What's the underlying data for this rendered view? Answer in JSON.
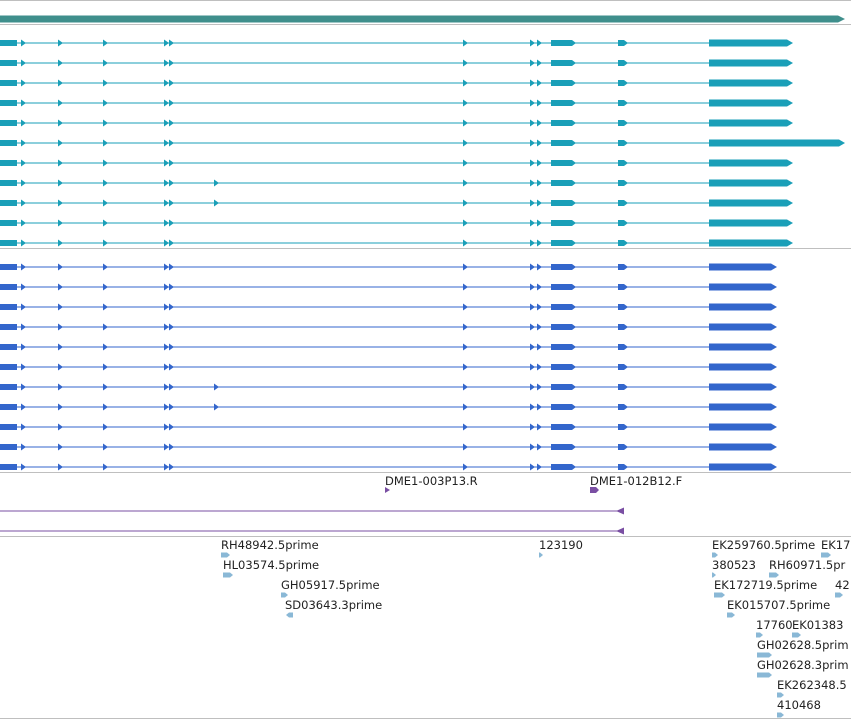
{
  "colors": {
    "background": "#ffffff",
    "divider": "#bfbfbf",
    "gene_span": "#3f8f8c",
    "transcripts_a": "#1a9fb8",
    "transcripts_b": "#3366cc",
    "clones": "#7a4fa3",
    "ests": "#8ab8d6"
  },
  "gene": {
    "strand": "forward"
  },
  "transcript_track_a": {
    "strand": "forward",
    "rows": [
      {
        "variant": "standard",
        "long_3prime": false
      },
      {
        "variant": "standard",
        "long_3prime": false
      },
      {
        "variant": "standard",
        "long_3prime": false
      },
      {
        "variant": "standard",
        "long_3prime": false
      },
      {
        "variant": "standard",
        "long_3prime": false
      },
      {
        "variant": "standard",
        "long_3prime": true
      },
      {
        "variant": "standard",
        "long_3prime": false
      },
      {
        "variant": "extra_exon",
        "long_3prime": false
      },
      {
        "variant": "extra_exon",
        "long_3prime": false
      },
      {
        "variant": "standard",
        "long_3prime": false
      },
      {
        "variant": "standard",
        "long_3prime": false
      }
    ]
  },
  "transcript_track_b": {
    "strand": "forward",
    "rows": [
      {
        "variant": "standard"
      },
      {
        "variant": "standard"
      },
      {
        "variant": "standard"
      },
      {
        "variant": "standard"
      },
      {
        "variant": "standard"
      },
      {
        "variant": "standard"
      },
      {
        "variant": "extra_exon"
      },
      {
        "variant": "extra_exon"
      },
      {
        "variant": "standard"
      },
      {
        "variant": "standard"
      },
      {
        "variant": "standard"
      }
    ]
  },
  "clones": [
    {
      "label": "DME1-003P13.R",
      "strand": "forward"
    },
    {
      "label": "DME1-012B12.F",
      "strand": "forward"
    }
  ],
  "clone_lines": [
    {
      "strand": "reverse"
    },
    {
      "strand": "reverse"
    }
  ],
  "ests": [
    {
      "label": "RH48942.5prime",
      "strand": "forward"
    },
    {
      "label": "HL03574.5prime",
      "strand": "forward"
    },
    {
      "label": "GH05917.5prime",
      "strand": "forward"
    },
    {
      "label": "SD03643.3prime",
      "strand": "reverse"
    },
    {
      "label": "123190",
      "strand": "forward"
    },
    {
      "label": "EK259760.5prime",
      "strand": "forward"
    },
    {
      "label": "EK17",
      "strand": "forward"
    },
    {
      "label": "380523",
      "strand": "forward"
    },
    {
      "label": "RH60971.5pr",
      "strand": "forward"
    },
    {
      "label": "EK172719.5prime",
      "strand": "forward"
    },
    {
      "label": "42",
      "strand": "forward"
    },
    {
      "label": "EK015707.5prime",
      "strand": "forward"
    },
    {
      "label": "17760",
      "strand": "forward"
    },
    {
      "label": "EK01383",
      "strand": "forward"
    },
    {
      "label": "GH02628.5prim",
      "strand": "forward"
    },
    {
      "label": "GH02628.3prim",
      "strand": "forward"
    },
    {
      "label": "EK262348.5",
      "strand": "forward"
    },
    {
      "label": "410468",
      "strand": "forward"
    }
  ]
}
